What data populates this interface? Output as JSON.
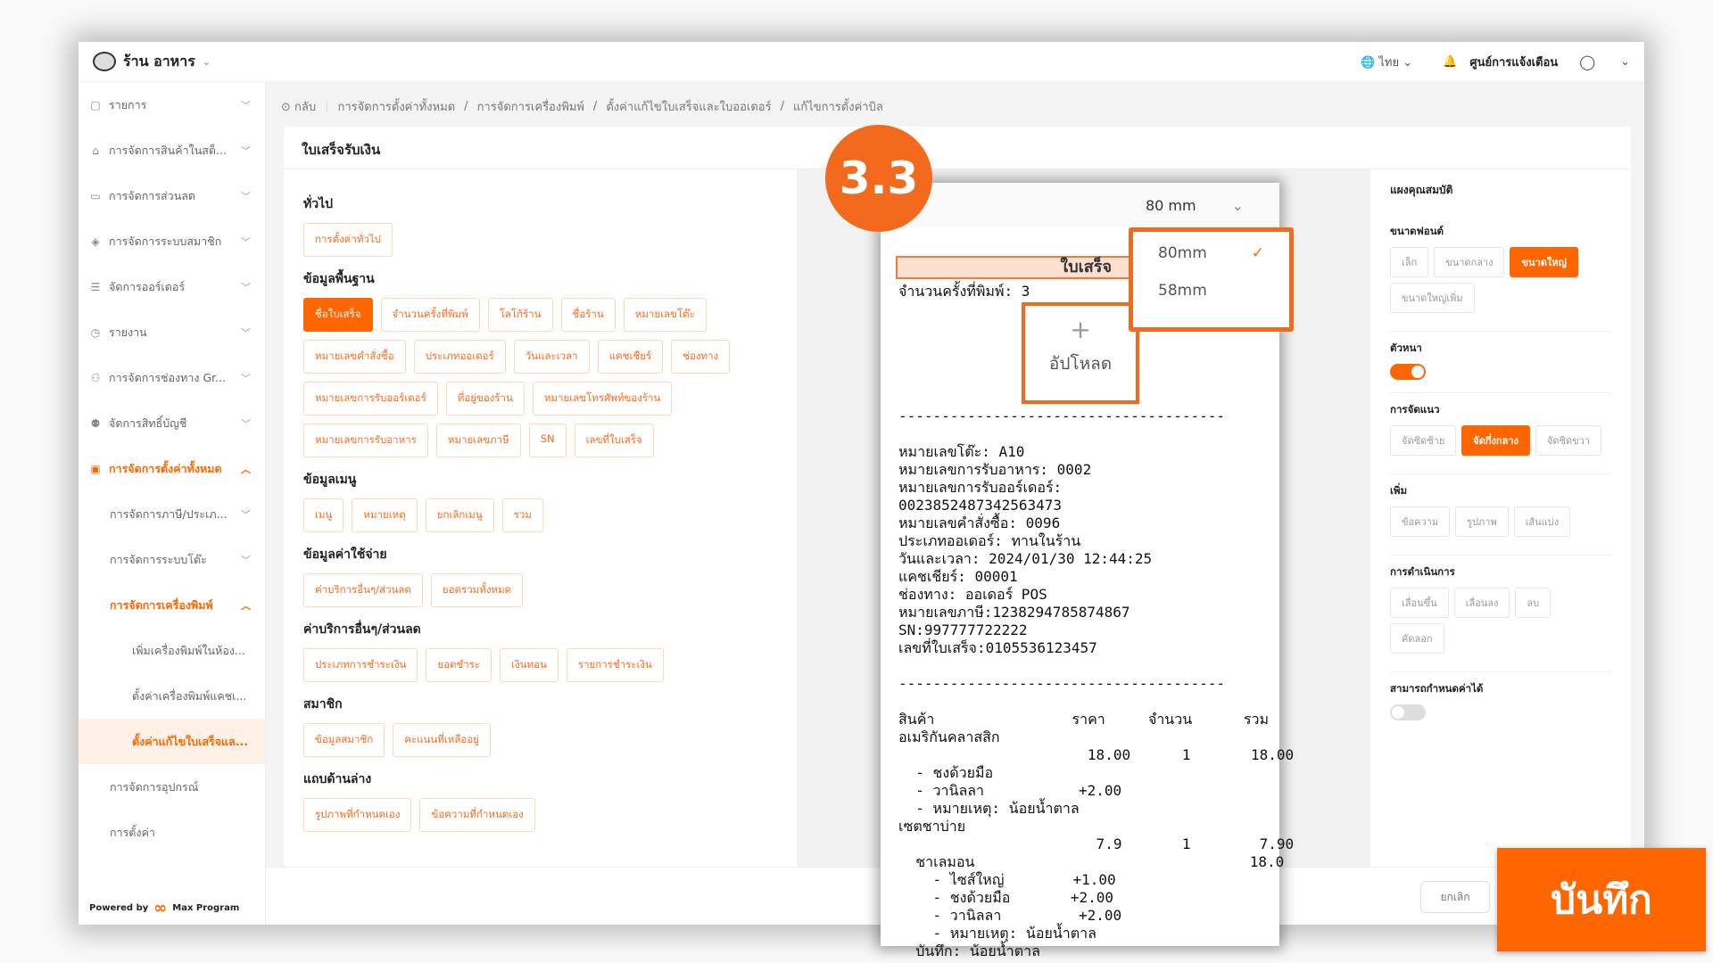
{
  "header": {
    "store": "ร้าน อาหาร",
    "language": "ไทย",
    "notifications": "ศูนย์การแจ้งเตือน"
  },
  "sidebar": {
    "items": [
      {
        "label": "รายการ",
        "icon": "list-icon"
      },
      {
        "label": "การจัดการสินค้าในสต็...",
        "icon": "store-icon"
      },
      {
        "label": "การจัดการส่วนลด",
        "icon": "ticket-icon"
      },
      {
        "label": "การจัดการระบบสมาชิก",
        "icon": "member-icon"
      },
      {
        "label": "จัดการออร์เดอร์",
        "icon": "order-icon"
      },
      {
        "label": "รายงาน",
        "icon": "clock-icon"
      },
      {
        "label": "การจัดการช่องทาง Gr...",
        "icon": "channel-icon"
      },
      {
        "label": "จัดการสิทธิ์บัญชี",
        "icon": "users-icon"
      },
      {
        "label": "การจัดการตั้งค่าทั้งหมด",
        "icon": "settings-icon"
      }
    ],
    "sub": [
      "การจัดการภาษี/ประเภ...",
      "การจัดการระบบโต๊ะ",
      "การจัดการเครื่องพิมพ์"
    ],
    "sub2": [
      "เพิ่มเครื่องพิมพ์ในห้อง...",
      "ตั้งค่าเครื่องพิมพ์แคชเ...",
      "ตั้งค่าแก้ไขใบเสร็จแล..."
    ],
    "bottom": [
      "การจัดการอุปกรณ์",
      "การตั้งค่า"
    ],
    "powered": "Powered by",
    "brand": "Max Program"
  },
  "breadcrumb": {
    "back": "กลับ",
    "items": [
      "การจัดการตั้งค่าทั้งหมด",
      "การจัดการเครื่องพิมพ์",
      "ตั้งค่าแก้ไขใบเสร็จและใบออเดอร์",
      "แก้ไขการตั้งค่าบิล"
    ]
  },
  "card_title": "ใบเสร็จรับเงิน",
  "sections": [
    {
      "title": "ทั่วไป",
      "chips": [
        "การตั้งค่าทั่วไป"
      ]
    },
    {
      "title": "ข้อมูลพื้นฐาน",
      "chips": [
        "ชื่อใบเสร็จ",
        "จำนวนครั้งที่พิมพ์",
        "โลโก้ร้าน",
        "ชื่อร้าน",
        "หมายเลขโต๊ะ",
        "หมายเลขคำสั่งซื้อ",
        "ประเภทออเดอร์",
        "วันและเวลา",
        "แคชเชียร์",
        "ช่องทาง",
        "หมายเลขการรับออร์เดอร์",
        "ที่อยู่ของร้าน",
        "หมายเลขโทรศัพท์ของร้าน",
        "หมายเลขการรับอาหาร",
        "หมายเลขภาษี",
        "SN",
        "เลขที่ใบเสร็จ"
      ],
      "active": "ชื่อใบเสร็จ"
    },
    {
      "title": "ข้อมูลเมนู",
      "chips": [
        "เมนู",
        "หมายเหตุ",
        "ยกเลิกเมนู",
        "รวม"
      ]
    },
    {
      "title": "ข้อมูลค่าใช้จ่าย",
      "chips": [
        "ค่าบริการอื่นๆ/ส่วนลด",
        "ยอดรวมทั้งหมด"
      ]
    },
    {
      "title": "ค่าบริการอื่นๆ/ส่วนลด",
      "chips": [
        "ประเภทการชำระเงิน",
        "ยอดชำระ",
        "เงินทอน",
        "รายการชำระเงิน"
      ]
    },
    {
      "title": "สมาชิก",
      "chips": [
        "ข้อมูลสมาชิก",
        "คะแนนที่เหลืออยู่"
      ]
    },
    {
      "title": "แถบด้านล่าง",
      "chips": [
        "รูปภาพที่กำหนดเอง",
        "ข้อความที่กำหนดเอง"
      ]
    }
  ],
  "preview": {
    "paper_size": "80 mm",
    "size_options": [
      "80mm",
      "58mm"
    ],
    "selected_size": "80mm",
    "title": "ใบเสร็จ",
    "upload": "อัปโหลด",
    "step_badge": "3.3",
    "lines": [
      "จำนวนครั้งที่พิมพ์: 3",
      "",
      "",
      "",
      "",
      "",
      "",
      "--------------------------------------",
      "",
      "หมายเลขโต๊ะ: A10",
      "หมายเลขการรับอาหาร: 0002",
      "หมายเลขการรับออร์เดอร์:",
      "0023852487342563473",
      "หมายเลขคำสั่งซื้อ: 0096",
      "ประเภทออเดอร์: ทานในร้าน",
      "วันและเวลา: 2024/01/30 12:44:25",
      "แคชเชียร์: 00001",
      "ช่องทาง: ออเดอร์ POS",
      "หมายเลขภาษี:1238294785874867",
      "SN:997777722222",
      "เลขที่ใบเสร็จ:0105536123457",
      "",
      "--------------------------------------",
      "",
      "สินค้า                ราคา     จำนวน      รวม",
      "อเมริกันคลาสสิก",
      "                      18.00      1       18.00",
      "  - ชงด้วยมือ",
      "  - วานิลลา           +2.00",
      "  - หมายเหตุ: น้อยน้ำตาล",
      "เซตชาบ่าย",
      "                       7.9       1        7.90",
      "  ชาเลมอน                                18.0",
      "    - ไซส์ใหญ่        +1.00",
      "    - ชงด้วยมือ       +2.00",
      "    - วานิลลา         +2.00",
      "    - หมายเหตุ: น้อยน้ำตาล",
      "  บันทึก: น้อยน้ำตาล"
    ]
  },
  "props": {
    "title": "แผงคุณสมบัติ",
    "font_size": {
      "label": "ขนาดฟอนต์",
      "options": [
        "เล็ก",
        "ขนาดกลาง",
        "ขนาดใหญ่",
        "ขนาดใหญ่เพิ่ม"
      ],
      "selected": "ขนาดใหญ่"
    },
    "bold": {
      "label": "ตัวหนา",
      "on": true
    },
    "align": {
      "label": "การจัดแนว",
      "options": [
        "จัดชิดซ้าย",
        "จัดกึ่งกลาง",
        "จัดชิดขวา"
      ],
      "selected": "จัดกึ่งกลาง"
    },
    "add": {
      "label": "เพิ่ม",
      "options": [
        "ข้อความ",
        "รูปภาพ",
        "เส้นแบ่ง"
      ]
    },
    "ops": {
      "label": "การดำเนินการ",
      "options": [
        "เลื่อนขึ้น",
        "เลื่อนลง",
        "ลบ",
        "คัดลอก"
      ]
    },
    "custom": {
      "label": "สามารถกำหนดค่าได้",
      "on": false
    }
  },
  "footer": {
    "cancel": "ยกเลิก",
    "save": "บันทึก"
  },
  "colors": {
    "accent": "#ff6600"
  }
}
